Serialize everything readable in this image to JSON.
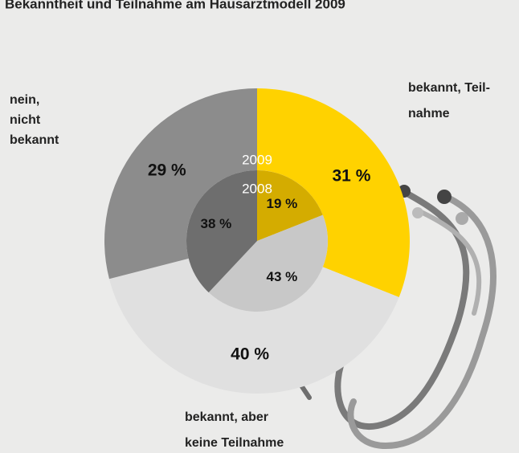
{
  "chart_data": {
    "type": "nested-donut",
    "title": "Bekanntheit und Teilnahme am Hausarztmodell 2009",
    "categories": [
      [
        "bekannt, Teil-",
        "nahme"
      ],
      [
        "bekannt, aber",
        "keine Teilnahme"
      ],
      [
        "nein,",
        "nicht",
        "bekannt"
      ]
    ],
    "series": [
      {
        "name": "2009",
        "colors": [
          "#ffd200",
          "#e0e0e0",
          "#8c8c8c"
        ],
        "values": [
          31,
          40,
          29
        ],
        "value_labels": [
          "31 %",
          "40 %",
          "29 %"
        ]
      },
      {
        "name": "2008",
        "colors": [
          "#d4ac00",
          "#c8c8c8",
          "#6e6e6e"
        ],
        "values": [
          19,
          43,
          38
        ],
        "value_labels": [
          "19 %",
          "43 %",
          "38 %"
        ]
      }
    ]
  }
}
